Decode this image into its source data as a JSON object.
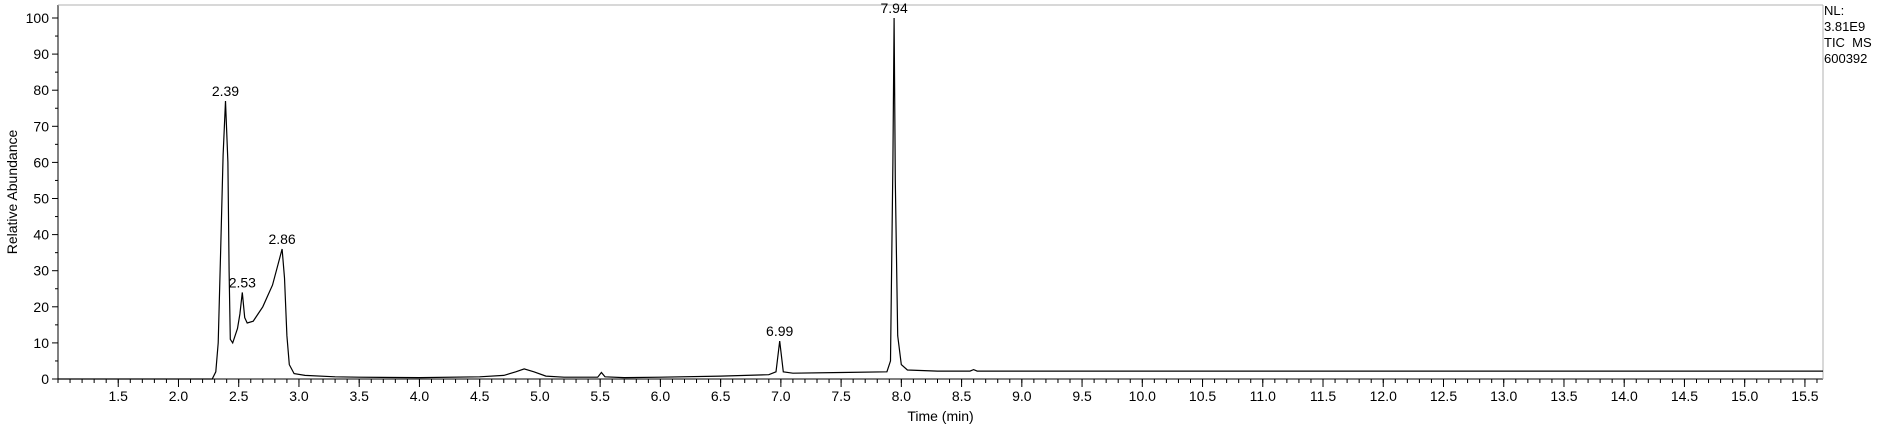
{
  "info": {
    "nl_label": "NL:",
    "nl_value": "3.81E9",
    "trace": "TIC  MS",
    "sample": "600392"
  },
  "chart_data": {
    "type": "line",
    "title": "",
    "xlabel": "Time (min)",
    "ylabel": "Relative Abundance",
    "xlim": [
      1.0,
      15.65
    ],
    "ylim": [
      0,
      100
    ],
    "grid": false,
    "xticks": [
      1.5,
      2.0,
      2.5,
      3.0,
      3.5,
      4.0,
      4.5,
      5.0,
      5.5,
      6.0,
      6.5,
      7.0,
      7.5,
      8.0,
      8.5,
      9.0,
      9.5,
      10.0,
      10.5,
      11.0,
      11.5,
      12.0,
      12.5,
      13.0,
      13.5,
      14.0,
      14.5,
      15.0,
      15.5
    ],
    "xtick_labels": [
      "1.5",
      "2.0",
      "2.5",
      "3.0",
      "3.5",
      "4.0",
      "4.5",
      "5.0",
      "5.5",
      "6.0",
      "6.5",
      "7.0",
      "7.5",
      "8.0",
      "8.5",
      "9.0",
      "9.5",
      "10.0",
      "10.5",
      "11.0",
      "11.5",
      "12.0",
      "12.5",
      "13.0",
      "13.5",
      "14.0",
      "14.5",
      "15.0",
      "15.5"
    ],
    "yticks": [
      0,
      10,
      20,
      30,
      40,
      50,
      60,
      70,
      80,
      90,
      100
    ],
    "ytick_labels": [
      "0",
      "10",
      "20",
      "30",
      "40",
      "50",
      "60",
      "70",
      "80",
      "90",
      "100"
    ],
    "peak_labels": [
      {
        "x": 2.39,
        "y": 77,
        "text": "2.39"
      },
      {
        "x": 2.53,
        "y": 24,
        "text": "2.53"
      },
      {
        "x": 2.86,
        "y": 36,
        "text": "2.86"
      },
      {
        "x": 6.99,
        "y": 10.5,
        "text": "6.99"
      },
      {
        "x": 7.94,
        "y": 100,
        "text": "7.94"
      }
    ],
    "series": [
      {
        "points": [
          [
            1.0,
            0
          ],
          [
            2.28,
            0
          ],
          [
            2.31,
            2
          ],
          [
            2.33,
            10
          ],
          [
            2.35,
            35
          ],
          [
            2.37,
            62
          ],
          [
            2.39,
            77
          ],
          [
            2.41,
            60
          ],
          [
            2.42,
            30
          ],
          [
            2.43,
            11
          ],
          [
            2.45,
            10
          ],
          [
            2.47,
            12
          ],
          [
            2.49,
            14
          ],
          [
            2.51,
            18
          ],
          [
            2.53,
            24
          ],
          [
            2.55,
            17
          ],
          [
            2.57,
            15.5
          ],
          [
            2.62,
            16
          ],
          [
            2.66,
            18
          ],
          [
            2.7,
            20
          ],
          [
            2.74,
            23
          ],
          [
            2.78,
            26
          ],
          [
            2.82,
            31
          ],
          [
            2.86,
            36
          ],
          [
            2.88,
            28
          ],
          [
            2.9,
            12
          ],
          [
            2.92,
            4
          ],
          [
            2.96,
            1.5
          ],
          [
            3.05,
            1
          ],
          [
            3.3,
            0.6
          ],
          [
            3.5,
            0.5
          ],
          [
            4.0,
            0.4
          ],
          [
            4.5,
            0.6
          ],
          [
            4.7,
            1
          ],
          [
            4.8,
            2
          ],
          [
            4.87,
            2.8
          ],
          [
            4.95,
            2
          ],
          [
            5.05,
            0.8
          ],
          [
            5.2,
            0.5
          ],
          [
            5.48,
            0.5
          ],
          [
            5.51,
            1.8
          ],
          [
            5.54,
            0.6
          ],
          [
            5.7,
            0.4
          ],
          [
            6.0,
            0.5
          ],
          [
            6.5,
            0.8
          ],
          [
            6.9,
            1.2
          ],
          [
            6.96,
            2
          ],
          [
            6.99,
            10.5
          ],
          [
            7.02,
            2
          ],
          [
            7.1,
            1.6
          ],
          [
            7.5,
            1.8
          ],
          [
            7.88,
            2
          ],
          [
            7.91,
            5
          ],
          [
            7.93,
            60
          ],
          [
            7.94,
            100
          ],
          [
            7.95,
            55
          ],
          [
            7.97,
            12
          ],
          [
            8.0,
            4
          ],
          [
            8.05,
            2.5
          ],
          [
            8.3,
            2.2
          ],
          [
            8.57,
            2.2
          ],
          [
            8.6,
            2.6
          ],
          [
            8.63,
            2.2
          ],
          [
            9.0,
            2.2
          ],
          [
            15.65,
            2.2
          ]
        ]
      }
    ]
  }
}
